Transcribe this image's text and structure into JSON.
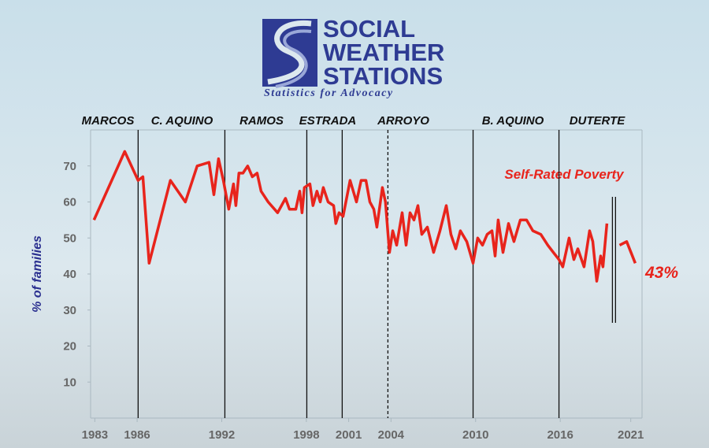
{
  "logo": {
    "line1": "SOCIAL",
    "line2": "WEATHER",
    "line3": "STATIONS",
    "tagline": "Statistics for Advocacy"
  },
  "chart_data": {
    "type": "line",
    "eras": [
      "MARCOS",
      "C. AQUINO",
      "RAMOS",
      "ESTRADA",
      "ARROYO",
      "B. AQUINO",
      "DUTERTE"
    ],
    "ylabel": "% of families",
    "annotation": "Self-Rated Poverty",
    "end_label": "43%",
    "xlim": [
      1982.7,
      2021.8
    ],
    "ylim": [
      0,
      80
    ],
    "xticks": [
      1983,
      1986,
      1992,
      1998,
      2001,
      2004,
      2010,
      2016,
      2021
    ],
    "yticks": [
      10,
      20,
      30,
      40,
      50,
      60,
      70
    ],
    "dividers": [
      {
        "x": 1986.07,
        "style": "solid"
      },
      {
        "x": 1992.22,
        "style": "solid"
      },
      {
        "x": 1998.03,
        "style": "solid"
      },
      {
        "x": 2000.54,
        "style": "solid"
      },
      {
        "x": 2003.78,
        "style": "dashed"
      },
      {
        "x": 2009.82,
        "style": "solid"
      },
      {
        "x": 2015.91,
        "style": "solid"
      }
    ],
    "gap_marks": [
      2019.7,
      2019.92
    ],
    "series": [
      {
        "name": "Self-Rated Poverty",
        "color": "#e8241c",
        "x": [
          1982.94,
          1985.12,
          1986.07,
          1986.41,
          1986.85,
          1988.36,
          1989.42,
          1990.26,
          1991.1,
          1991.44,
          1991.77,
          1992.11,
          1992.5,
          1992.83,
          1993.0,
          1993.22,
          1993.5,
          1993.84,
          1994.17,
          1994.51,
          1994.79,
          1995.29,
          1995.96,
          1996.52,
          1996.8,
          1997.25,
          1997.53,
          1997.69,
          1997.86,
          1998.25,
          1998.47,
          1998.75,
          1998.98,
          1999.2,
          1999.54,
          1999.93,
          2000.09,
          2000.32,
          2000.6,
          2001.1,
          2001.55,
          2001.88,
          2002.22,
          2002.5,
          2002.78,
          2003.0,
          2003.39,
          2003.61,
          2003.89,
          2004.12,
          2004.4,
          2004.79,
          2005.07,
          2005.35,
          2005.63,
          2005.91,
          2006.18,
          2006.58,
          2007.02,
          2007.47,
          2007.92,
          2008.25,
          2008.59,
          2008.92,
          2009.37,
          2009.82,
          2010.15,
          2010.49,
          2010.82,
          2011.16,
          2011.38,
          2011.6,
          2011.94,
          2012.33,
          2012.72,
          2013.17,
          2013.61,
          2014.06,
          2014.62,
          2015.12,
          2015.51,
          2015.91,
          2016.18,
          2016.63,
          2016.97,
          2017.25,
          2017.69,
          2018.08,
          2018.31,
          2018.59,
          2018.87,
          2019.03,
          2019.31,
          2019.8,
          2020.21,
          2020.71,
          2021.32
        ],
        "values": [
          55,
          74,
          66,
          67,
          43,
          66,
          60,
          70,
          71,
          62,
          72,
          66,
          58,
          65,
          59,
          68,
          68,
          70,
          67,
          68,
          63,
          60,
          57,
          61,
          58,
          58,
          63,
          57,
          64,
          65,
          59,
          63,
          60,
          64,
          60,
          59,
          54,
          57,
          56,
          66,
          60,
          66,
          66,
          60,
          58,
          53,
          64,
          60,
          46,
          52,
          48,
          57,
          48,
          57,
          55,
          59,
          51,
          53,
          46,
          52,
          59,
          51,
          47,
          52,
          49,
          43,
          50,
          48,
          51,
          52,
          45,
          55,
          46,
          54,
          49,
          55,
          55,
          52,
          51,
          48,
          46,
          44,
          42,
          50,
          44,
          47,
          42,
          52,
          49,
          38,
          45,
          42,
          54,
          null,
          48,
          49,
          43
        ]
      }
    ]
  }
}
